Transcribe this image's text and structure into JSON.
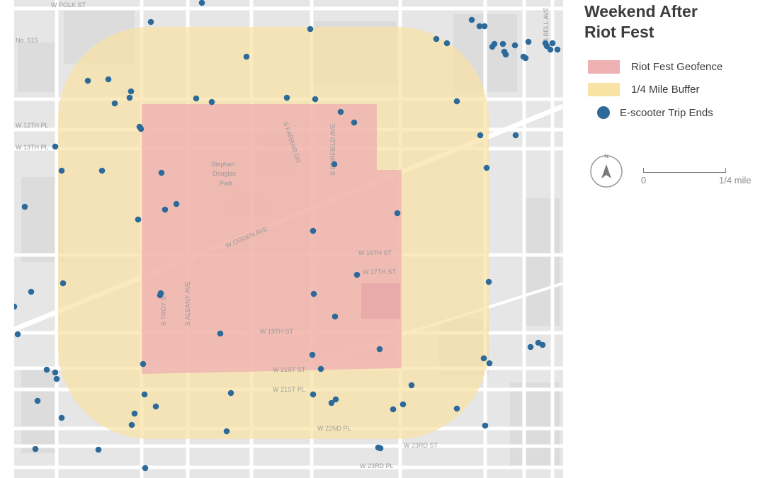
{
  "title_line1": "Weekend After",
  "title_line2": "Riot Fest",
  "legend": {
    "geofence": {
      "label": "Riot Fest Geofence",
      "color": "#eeb0b2"
    },
    "buffer": {
      "label": "1/4 Mile Buffer",
      "color": "#f8e2a4"
    },
    "trips": {
      "label": "E-scooter Trip Ends",
      "color": "#2d6a9a"
    }
  },
  "north_label": "N",
  "scale": {
    "zero": "0",
    "end": "1/4 mile"
  },
  "map_labels": {
    "polk": "W POLK ST",
    "no515": "No. 515",
    "w12th": "W 12TH PL",
    "w13th": "W 13TH PL",
    "park": "Stephen",
    "park2": "Douglas",
    "park3": "Park",
    "farrar": "S FARRAR DR",
    "fairfield": "S FAIRFIELD AVE",
    "bell": "S BELL AVE",
    "ogden": "W OGDEN AVE",
    "w16th": "W 16TH ST",
    "w17th": "W 17TH ST",
    "troy": "S TROY ST",
    "albany": "S ALBANY AVE",
    "w19th": "W 19TH ST",
    "w21st": "W 21ST ST",
    "w21pl": "W 21ST PL",
    "w22nd": "W 22ND PL",
    "w23rd": "W 23RD ST",
    "w23pl": "W 23RD PL"
  }
}
